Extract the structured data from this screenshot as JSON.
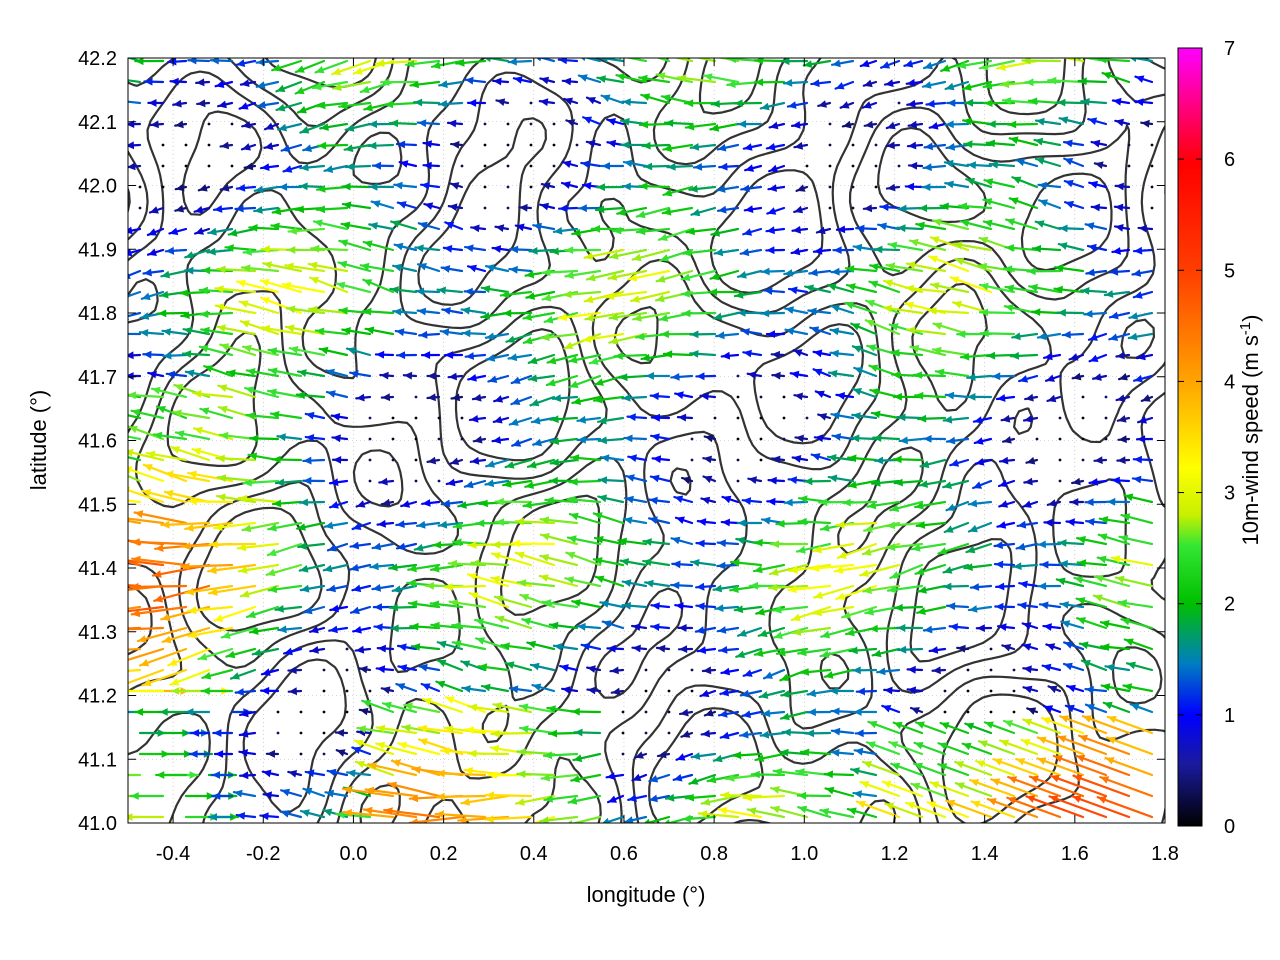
{
  "chart_data": {
    "type": "vector-field",
    "xlabel": "longitude (°)",
    "ylabel": "latitude (°)",
    "colorbar": {
      "label_main": "10m-wind speed (m s",
      "label_sup": "-1",
      "label_close": ")",
      "range": [
        0,
        7
      ],
      "ticks": [
        "0",
        "1",
        "2",
        "3",
        "4",
        "5",
        "6",
        "7"
      ],
      "colors": [
        "#000000",
        "#1a1a9e",
        "#0000ff",
        "#007fbf",
        "#00bf00",
        "#33e633",
        "#c8f000",
        "#ffff00",
        "#ffa500",
        "#ff4000",
        "#ff0000",
        "#ff00ff"
      ]
    },
    "xlim": [
      -0.5,
      1.8
    ],
    "ylim": [
      41.0,
      42.2
    ],
    "x_ticks": [
      "-0.4",
      "-0.2",
      "0.0",
      "0.2",
      "0.4",
      "0.6",
      "0.8",
      "1.0",
      "1.2",
      "1.4",
      "1.6",
      "1.8"
    ],
    "y_ticks": [
      "41.0",
      "41.1",
      "41.2",
      "41.3",
      "41.4",
      "41.5",
      "41.6",
      "41.7",
      "41.8",
      "41.9",
      "42.0",
      "42.1",
      "42.2"
    ],
    "grid": true,
    "contours": true
  }
}
